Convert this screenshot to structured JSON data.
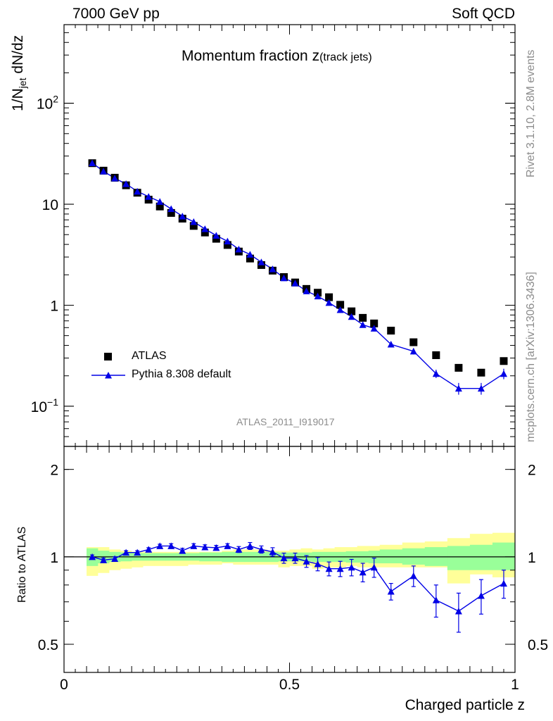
{
  "header": {
    "left": "7000 GeV pp",
    "right": "Soft QCD"
  },
  "side": {
    "rivet": "Rivet 3.1.10,  2.8M events",
    "mcplots": "mcplots.cern.ch [arXiv:1306.3436]"
  },
  "analysis_id": "ATLAS_2011_I919017",
  "chart_data": [
    {
      "type": "scatter",
      "title_main": "Momentum fraction z",
      "title_sub": "(track jets)",
      "ylabel_main": "1/N",
      "ylabel_sub": "jet",
      "ylabel_tail": " dN/dz",
      "xlim": [
        0,
        1
      ],
      "yscale": "log",
      "ylim": [
        0.04,
        600
      ],
      "yticks": [
        {
          "value": 0.1,
          "base": "10",
          "exp": "−1"
        },
        {
          "value": 1,
          "label": "1"
        },
        {
          "value": 10,
          "label": "10"
        },
        {
          "value": 100,
          "base": "10",
          "exp": "2"
        }
      ],
      "legend_position": "bottom-left",
      "x": [
        0.0625,
        0.0875,
        0.1125,
        0.1375,
        0.1625,
        0.1875,
        0.2125,
        0.2375,
        0.2625,
        0.2875,
        0.3125,
        0.3375,
        0.3625,
        0.3875,
        0.4125,
        0.4375,
        0.4625,
        0.4875,
        0.5125,
        0.5375,
        0.5625,
        0.5875,
        0.6125,
        0.6375,
        0.6625,
        0.6875,
        0.725,
        0.775,
        0.825,
        0.875,
        0.925,
        0.975
      ],
      "series": [
        {
          "name": "ATLAS",
          "color": "#000000",
          "marker": "square",
          "values": [
            25.5,
            21.5,
            18.3,
            15.4,
            13.0,
            11.1,
            9.5,
            8.2,
            7.2,
            6.1,
            5.25,
            4.55,
            3.95,
            3.4,
            2.9,
            2.5,
            2.2,
            1.9,
            1.68,
            1.45,
            1.33,
            1.2,
            1.01,
            0.87,
            0.75,
            0.66,
            0.56,
            0.43,
            0.32,
            0.24,
            0.215,
            0.28
          ]
        },
        {
          "name": "Pythia 8.308 default",
          "color": "#0000e6",
          "marker": "triangle",
          "values": [
            25.6,
            21.2,
            18.1,
            15.9,
            13.4,
            11.9,
            10.6,
            9.0,
            7.6,
            6.7,
            5.7,
            4.9,
            4.3,
            3.58,
            3.18,
            2.67,
            2.28,
            1.86,
            1.65,
            1.38,
            1.23,
            1.06,
            0.9,
            0.77,
            0.64,
            0.59,
            0.41,
            0.35,
            0.21,
            0.15,
            0.15,
            0.21
          ],
          "errors": [
            0.3,
            0.2,
            0.2,
            0.15,
            0.12,
            0.1,
            0.1,
            0.08,
            0.07,
            0.06,
            0.05,
            0.05,
            0.04,
            0.03,
            0.03,
            0.03,
            0.03,
            0.03,
            0.03,
            0.03,
            0.03,
            0.03,
            0.03,
            0.03,
            0.03,
            0.03,
            0.025,
            0.025,
            0.02,
            0.02,
            0.02,
            0.025
          ]
        }
      ]
    },
    {
      "type": "line",
      "ylabel": "Ratio to ATLAS",
      "xlabel": "Charged particle z",
      "xlim": [
        0,
        1
      ],
      "xticks": [
        {
          "value": 0,
          "label": "0"
        },
        {
          "value": 0.5,
          "label": "0.5"
        },
        {
          "value": 1,
          "label": "1"
        }
      ],
      "yscale": "log",
      "ylim": [
        0.4,
        2.4
      ],
      "yticks": [
        {
          "value": 0.5,
          "label": "0.5"
        },
        {
          "value": 1,
          "label": "1"
        },
        {
          "value": 2,
          "label": "2"
        }
      ],
      "reference_line": 1,
      "bands": {
        "edges": [
          0.05,
          0.075,
          0.1,
          0.125,
          0.15,
          0.175,
          0.2,
          0.225,
          0.25,
          0.275,
          0.3,
          0.325,
          0.35,
          0.375,
          0.4,
          0.425,
          0.45,
          0.475,
          0.5,
          0.525,
          0.55,
          0.575,
          0.6,
          0.625,
          0.65,
          0.675,
          0.7,
          0.75,
          0.8,
          0.85,
          0.9,
          0.95,
          1.0
        ],
        "stat_color": "#99ff99",
        "total_color": "#ffff99",
        "stat": [
          [
            0.93,
            1.07
          ],
          [
            0.95,
            1.05
          ],
          [
            0.96,
            1.04
          ],
          [
            0.965,
            1.035
          ],
          [
            0.97,
            1.03
          ],
          [
            0.97,
            1.03
          ],
          [
            0.97,
            1.03
          ],
          [
            0.97,
            1.03
          ],
          [
            0.97,
            1.03
          ],
          [
            0.97,
            1.03
          ],
          [
            0.965,
            1.035
          ],
          [
            0.965,
            1.035
          ],
          [
            0.96,
            1.04
          ],
          [
            0.96,
            1.04
          ],
          [
            0.96,
            1.04
          ],
          [
            0.96,
            1.04
          ],
          [
            0.96,
            1.04
          ],
          [
            0.965,
            1.035
          ],
          [
            0.965,
            1.035
          ],
          [
            0.965,
            1.035
          ],
          [
            0.96,
            1.04
          ],
          [
            0.96,
            1.04
          ],
          [
            0.96,
            1.04
          ],
          [
            0.955,
            1.045
          ],
          [
            0.955,
            1.045
          ],
          [
            0.95,
            1.05
          ],
          [
            0.95,
            1.06
          ],
          [
            0.94,
            1.07
          ],
          [
            0.93,
            1.08
          ],
          [
            0.9,
            1.09
          ],
          [
            0.9,
            1.1
          ],
          [
            0.9,
            1.12
          ]
        ],
        "total": [
          [
            0.86,
            1.08
          ],
          [
            0.88,
            1.08
          ],
          [
            0.9,
            1.06
          ],
          [
            0.91,
            1.05
          ],
          [
            0.92,
            1.04
          ],
          [
            0.93,
            1.04
          ],
          [
            0.93,
            1.04
          ],
          [
            0.93,
            1.04
          ],
          [
            0.93,
            1.04
          ],
          [
            0.94,
            1.04
          ],
          [
            0.94,
            1.04
          ],
          [
            0.94,
            1.04
          ],
          [
            0.95,
            1.05
          ],
          [
            0.94,
            1.06
          ],
          [
            0.94,
            1.06
          ],
          [
            0.94,
            1.06
          ],
          [
            0.94,
            1.05
          ],
          [
            0.92,
            1.05
          ],
          [
            0.93,
            1.06
          ],
          [
            0.93,
            1.07
          ],
          [
            0.91,
            1.06
          ],
          [
            0.92,
            1.07
          ],
          [
            0.92,
            1.08
          ],
          [
            0.93,
            1.08
          ],
          [
            0.92,
            1.09
          ],
          [
            0.92,
            1.09
          ],
          [
            0.92,
            1.1
          ],
          [
            0.92,
            1.12
          ],
          [
            0.92,
            1.13
          ],
          [
            0.81,
            1.16
          ],
          [
            0.87,
            1.2
          ],
          [
            0.85,
            1.21
          ]
        ]
      },
      "x": [
        0.0625,
        0.0875,
        0.1125,
        0.1375,
        0.1625,
        0.1875,
        0.2125,
        0.2375,
        0.2625,
        0.2875,
        0.3125,
        0.3375,
        0.3625,
        0.3875,
        0.4125,
        0.4375,
        0.4625,
        0.4875,
        0.5125,
        0.5375,
        0.5625,
        0.5875,
        0.6125,
        0.6375,
        0.6625,
        0.6875,
        0.725,
        0.775,
        0.825,
        0.875,
        0.925,
        0.975
      ],
      "series": [
        {
          "name": "Pythia 8.308 default",
          "color": "#0000e6",
          "values": [
            1.0,
            0.975,
            0.985,
            1.035,
            1.035,
            1.06,
            1.09,
            1.09,
            1.05,
            1.09,
            1.08,
            1.075,
            1.09,
            1.06,
            1.09,
            1.06,
            1.04,
            0.99,
            0.99,
            0.965,
            0.945,
            0.91,
            0.91,
            0.92,
            0.885,
            0.92,
            0.76,
            0.86,
            0.71,
            0.65,
            0.735,
            0.81
          ],
          "errors": [
            0.015,
            0.015,
            0.015,
            0.015,
            0.015,
            0.015,
            0.015,
            0.02,
            0.02,
            0.02,
            0.02,
            0.02,
            0.02,
            0.025,
            0.03,
            0.03,
            0.035,
            0.04,
            0.04,
            0.045,
            0.05,
            0.05,
            0.055,
            0.06,
            0.065,
            0.07,
            0.05,
            0.07,
            0.09,
            0.1,
            0.1,
            0.09
          ]
        }
      ]
    }
  ]
}
